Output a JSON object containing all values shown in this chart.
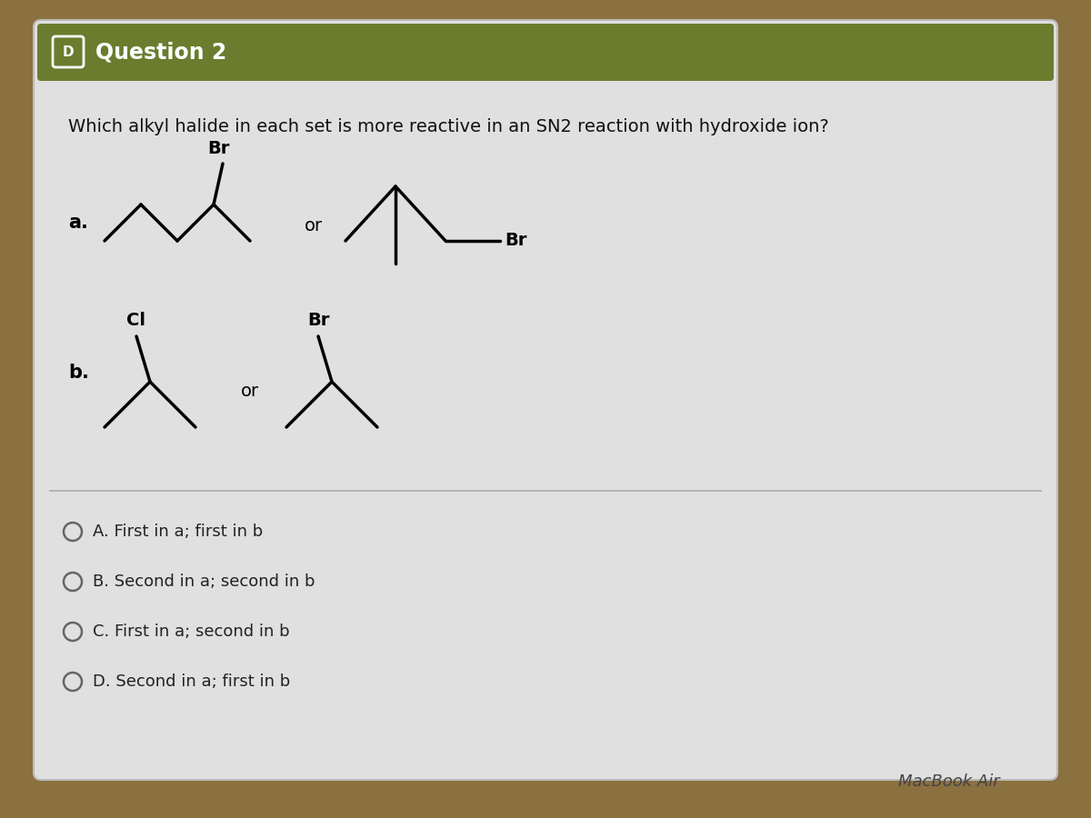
{
  "title": "Question 2",
  "question_text": "Which alkyl halide in each set is more reactive in an SN2 reaction with hydroxide ion?",
  "card_color": "#e0e0e0",
  "header_color": "#6b7c2e",
  "header_text_color": "#ffffff",
  "question_text_color": "#111111",
  "options": [
    "A. First in a; first in b",
    "B. Second in a; second in b",
    "C. First in a; second in b",
    "D. Second in a; first in b"
  ],
  "macbook_text": "MacBook Air",
  "outer_bg": "#8b7040"
}
